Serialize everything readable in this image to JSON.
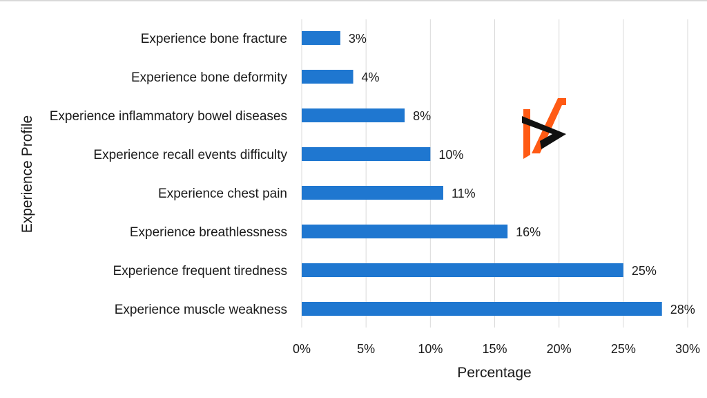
{
  "chart_data": {
    "type": "bar",
    "orientation": "horizontal",
    "categories": [
      "Experience bone fracture",
      "Experience bone deformity",
      "Experience inflammatory bowel diseases",
      "Experience recall events difficulty",
      "Experience chest pain",
      "Experience breathlessness",
      "Experience frequent tiredness",
      "Experience muscle weakness"
    ],
    "values": [
      3,
      4,
      8,
      10,
      11,
      16,
      25,
      28
    ],
    "data_labels": [
      "3%",
      "4%",
      "8%",
      "10%",
      "11%",
      "16%",
      "25%",
      "28%"
    ],
    "xlabel": "Percentage",
    "ylabel": "Experience Profile",
    "xlim": [
      0,
      30
    ],
    "xticks": [
      0,
      5,
      10,
      15,
      20,
      25,
      30
    ],
    "xtick_labels": [
      "0%",
      "5%",
      "10%",
      "15%",
      "20%",
      "25%",
      "30%"
    ],
    "grid": "vertical",
    "legend": "none",
    "bar_color": "#1f77d0"
  },
  "logo": {
    "colors": {
      "orange": "#ff5a14",
      "black": "#111111"
    }
  }
}
